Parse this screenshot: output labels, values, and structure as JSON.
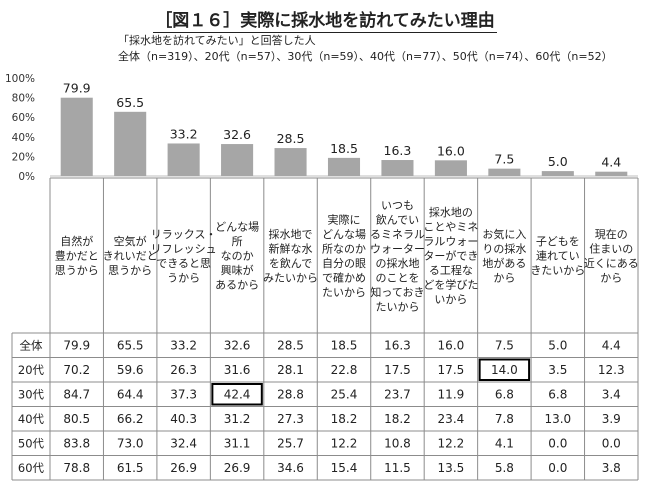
{
  "title": "［図１６］実際に採水地を訪れてみたい理由",
  "subtitle1": "「採水地を訪れてみたい」と回答した人",
  "subtitle2": "全体（n=319）、20代（n=57）、30代（n=59）、40代（n=77）、50代（n=74）、60代（n=52）",
  "chart_data": {
    "type": "bar",
    "ylim": [
      0,
      100
    ],
    "y_ticks": [
      "0%",
      "20%",
      "40%",
      "60%",
      "80%",
      "100%"
    ],
    "bar_color": "#a6a6a6",
    "highlight_color": "#000000",
    "categories": [
      [
        "自然が",
        "豊かだと",
        "思うから"
      ],
      [
        "空気が",
        "きれいだと",
        "思うから"
      ],
      [
        "リラックス・",
        "リフレッシュ",
        "できると思",
        "うから"
      ],
      [
        "どんな場",
        "所",
        "なのか",
        "興味が",
        "あるから"
      ],
      [
        "採水地で",
        "新鮮な水",
        "を飲んで",
        "みたいから"
      ],
      [
        "実際に",
        "どんな場",
        "所なのか",
        "自分の眼",
        "で確かめ",
        "たいから"
      ],
      [
        "いつも",
        "飲んでい",
        "るミネラル",
        "ウォーター",
        "の採水地",
        "のことを",
        "知っておき",
        "たいから"
      ],
      [
        "採水地の",
        "ことやミネ",
        "ラルウォー",
        "ターができ",
        "る工程な",
        "どを学びた",
        "いから"
      ],
      [
        "お気に入",
        "りの採水",
        "地がある",
        "から"
      ],
      [
        "子どもを",
        "連れてい",
        "きたいから"
      ],
      [
        "現在の",
        "住まいの",
        "近くにある",
        "から"
      ]
    ],
    "values": [
      79.9,
      65.5,
      33.2,
      32.6,
      28.5,
      18.5,
      16.3,
      16.0,
      7.5,
      5.0,
      4.4
    ],
    "table": {
      "rows": [
        {
          "label": "全体",
          "values": [
            "79.9",
            "65.5",
            "33.2",
            "32.6",
            "28.5",
            "18.5",
            "16.3",
            "16.0",
            "7.5",
            "5.0",
            "4.4"
          ]
        },
        {
          "label": "20代",
          "values": [
            "70.2",
            "59.6",
            "26.3",
            "31.6",
            "28.1",
            "22.8",
            "17.5",
            "17.5",
            "14.0",
            "3.5",
            "12.3"
          ]
        },
        {
          "label": "30代",
          "values": [
            "84.7",
            "64.4",
            "37.3",
            "42.4",
            "28.8",
            "25.4",
            "23.7",
            "11.9",
            "6.8",
            "6.8",
            "3.4"
          ]
        },
        {
          "label": "40代",
          "values": [
            "80.5",
            "66.2",
            "40.3",
            "31.2",
            "27.3",
            "18.2",
            "18.2",
            "23.4",
            "7.8",
            "13.0",
            "3.9"
          ]
        },
        {
          "label": "50代",
          "values": [
            "83.8",
            "73.0",
            "32.4",
            "31.1",
            "25.7",
            "12.2",
            "10.8",
            "12.2",
            "4.1",
            "0.0",
            "0.0"
          ]
        },
        {
          "label": "60代",
          "values": [
            "78.8",
            "61.5",
            "26.9",
            "26.9",
            "34.6",
            "15.4",
            "11.5",
            "13.5",
            "5.8",
            "0.0",
            "3.8"
          ]
        }
      ],
      "highlights": [
        {
          "row": 1,
          "col": 8
        },
        {
          "row": 2,
          "col": 3
        }
      ]
    }
  }
}
